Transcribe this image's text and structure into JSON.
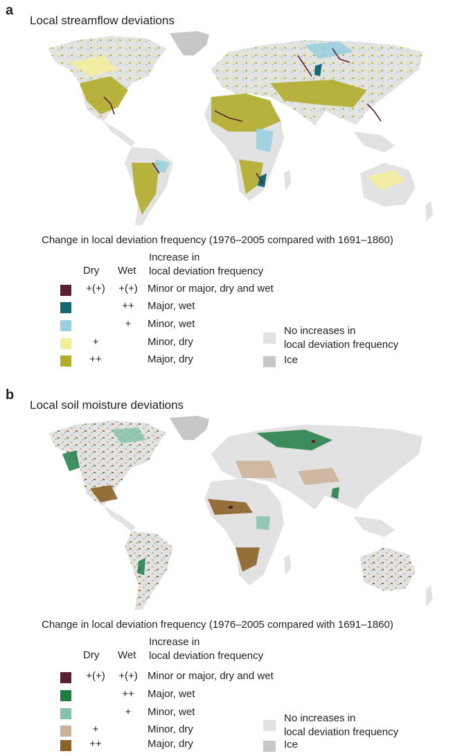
{
  "colors": {
    "ice": "#c7c7c7",
    "no_increase": "#e2e2e2",
    "ocean": "#ffffff"
  },
  "panels": [
    {
      "letter": "a",
      "title": "Local streamflow deviations",
      "subtitle": "Change in local deviation frequency (1976–2005 compared with 1691–1860)",
      "header_dry": "Dry",
      "header_wet": "Wet",
      "header_increase_1": "Increase in",
      "header_increase_2": "local deviation frequency",
      "legend": [
        {
          "dry": "+(+)",
          "wet": "+(+)",
          "label": "Minor or major, dry and wet",
          "color": "#5a1f33"
        },
        {
          "dry": "",
          "wet": "++",
          "label": "Major, wet",
          "color": "#176a73"
        },
        {
          "dry": "",
          "wet": "+",
          "label": "Minor, wet",
          "color": "#97cfdf"
        },
        {
          "dry": "+",
          "wet": "",
          "label": "Minor, dry",
          "color": "#f3ee9a"
        },
        {
          "dry": "++",
          "wet": "",
          "label": "Major, dry",
          "color": "#b2ad2c"
        }
      ],
      "no_increase_1": "No increases in",
      "no_increase_2": "local deviation frequency",
      "ice_label": "Ice"
    },
    {
      "letter": "b",
      "title": "Local soil moisture deviations",
      "subtitle": "Change in local deviation frequency (1976–2005 compared with 1691–1860)",
      "header_dry": "Dry",
      "header_wet": "Wet",
      "header_increase_1": "Increase in",
      "header_increase_2": "local deviation frequency",
      "legend": [
        {
          "dry": "+(+)",
          "wet": "+(+)",
          "label": "Minor or major, dry and wet",
          "color": "#5a1f33"
        },
        {
          "dry": "",
          "wet": "++",
          "label": "Major, wet",
          "color": "#1f7d45"
        },
        {
          "dry": "",
          "wet": "+",
          "label": "Minor, wet",
          "color": "#86c2ac"
        },
        {
          "dry": "+",
          "wet": "",
          "label": "Minor, dry",
          "color": "#ccb196"
        },
        {
          "dry": "++",
          "wet": "",
          "label": "Major, dry",
          "color": "#8c6328"
        }
      ],
      "no_increase_1": "No increases in",
      "no_increase_2": "local deviation frequency",
      "ice_label": "Ice"
    }
  ]
}
